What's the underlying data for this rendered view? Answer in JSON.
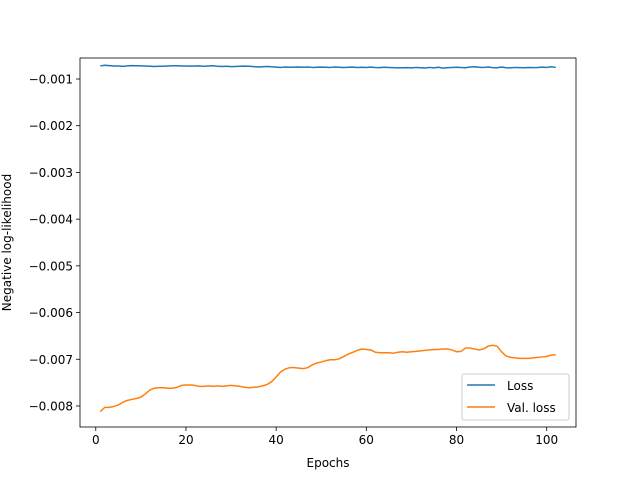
{
  "chart_data": {
    "type": "line",
    "title": "",
    "xlabel": "Epochs",
    "ylabel": "Negative log-likelihood",
    "xlim": [
      -3.5,
      106.5
    ],
    "ylim": [
      -0.00845,
      -0.00055
    ],
    "xticks": [
      0,
      20,
      40,
      60,
      80,
      100
    ],
    "xtick_labels": [
      "0",
      "20",
      "40",
      "60",
      "80",
      "100"
    ],
    "yticks": [
      -0.008,
      -0.007,
      -0.006,
      -0.005,
      -0.004,
      -0.003,
      -0.002,
      -0.001
    ],
    "ytick_labels": [
      "−0.008",
      "−0.007",
      "−0.006",
      "−0.005",
      "−0.004",
      "−0.003",
      "−0.002",
      "−0.001"
    ],
    "grid": false,
    "legend": "lower-right",
    "colors": [
      "#1f77b4",
      "#ff7f0e"
    ],
    "series": [
      {
        "name": "Loss",
        "x": [
          1,
          2,
          3,
          4,
          5,
          6,
          7,
          8,
          9,
          10,
          11,
          12,
          13,
          14,
          15,
          16,
          17,
          18,
          19,
          20,
          21,
          22,
          23,
          24,
          25,
          26,
          27,
          28,
          29,
          30,
          31,
          32,
          33,
          34,
          35,
          36,
          37,
          38,
          39,
          40,
          41,
          42,
          43,
          44,
          45,
          46,
          47,
          48,
          49,
          50,
          51,
          52,
          53,
          54,
          55,
          56,
          57,
          58,
          59,
          60,
          61,
          62,
          63,
          64,
          65,
          66,
          67,
          68,
          69,
          70,
          71,
          72,
          73,
          74,
          75,
          76,
          77,
          78,
          79,
          80,
          81,
          82,
          83,
          84,
          85,
          86,
          87,
          88,
          89,
          90,
          91,
          92,
          93,
          94,
          95,
          96,
          97,
          98,
          99,
          100,
          101,
          102
        ],
        "values": [
          -0.00072,
          -0.000705,
          -0.000712,
          -0.000722,
          -0.00072,
          -0.00073,
          -0.000718,
          -0.000712,
          -0.000715,
          -0.000718,
          -0.000722,
          -0.000728,
          -0.000732,
          -0.000728,
          -0.000728,
          -0.000722,
          -0.000715,
          -0.000715,
          -0.00072,
          -0.000722,
          -0.000725,
          -0.000722,
          -0.000718,
          -0.000728,
          -0.000722,
          -0.000715,
          -0.000728,
          -0.000732,
          -0.000728,
          -0.000735,
          -0.000732,
          -0.000728,
          -0.000725,
          -0.000728,
          -0.000735,
          -0.000742,
          -0.000738,
          -0.000732,
          -0.000738,
          -0.000745,
          -0.000752,
          -0.000742,
          -0.000748,
          -0.000745,
          -0.000742,
          -0.000748,
          -0.000742,
          -0.000752,
          -0.000748,
          -0.000745,
          -0.000748,
          -0.000752,
          -0.000742,
          -0.000748,
          -0.000752,
          -0.000748,
          -0.000745,
          -0.000752,
          -0.000748,
          -0.000752,
          -0.000745,
          -0.000752,
          -0.000755,
          -0.000748,
          -0.000752,
          -0.000755,
          -0.000762,
          -0.000758,
          -0.000755,
          -0.000762,
          -0.000752,
          -0.000758,
          -0.000765,
          -0.000752,
          -0.000762,
          -0.000748,
          -0.000768,
          -0.000755,
          -0.000752,
          -0.000748,
          -0.000752,
          -0.000758,
          -0.000742,
          -0.000738,
          -0.000748,
          -0.000752,
          -0.000742,
          -0.000755,
          -0.000758,
          -0.000742,
          -0.000758,
          -0.000762,
          -0.000752,
          -0.000755,
          -0.000758,
          -0.000752,
          -0.000755,
          -0.000752,
          -0.000745,
          -0.000752,
          -0.000738,
          -0.000752
        ]
      },
      {
        "name": "Val. loss",
        "x": [
          1,
          2,
          3,
          4,
          5,
          6,
          7,
          8,
          9,
          10,
          11,
          12,
          13,
          14,
          15,
          16,
          17,
          18,
          19,
          20,
          21,
          22,
          23,
          24,
          25,
          26,
          27,
          28,
          29,
          30,
          31,
          32,
          33,
          34,
          35,
          36,
          37,
          38,
          39,
          40,
          41,
          42,
          43,
          44,
          45,
          46,
          47,
          48,
          49,
          50,
          51,
          52,
          53,
          54,
          55,
          56,
          57,
          58,
          59,
          60,
          61,
          62,
          63,
          64,
          65,
          66,
          67,
          68,
          69,
          70,
          71,
          72,
          73,
          74,
          75,
          76,
          77,
          78,
          79,
          80,
          81,
          82,
          83,
          84,
          85,
          86,
          87,
          88,
          89,
          90,
          91,
          92,
          93,
          94,
          95,
          96,
          97,
          98,
          99,
          100,
          101,
          102
        ],
        "values": [
          -0.00812,
          -0.00803,
          -0.00803,
          -0.00801,
          -0.00798,
          -0.00792,
          -0.00788,
          -0.00786,
          -0.00784,
          -0.00781,
          -0.00774,
          -0.00766,
          -0.00762,
          -0.00761,
          -0.00761,
          -0.00762,
          -0.00762,
          -0.0076,
          -0.00756,
          -0.00755,
          -0.00755,
          -0.00756,
          -0.00758,
          -0.00758,
          -0.00757,
          -0.00758,
          -0.00757,
          -0.00758,
          -0.00757,
          -0.00756,
          -0.00757,
          -0.00758,
          -0.0076,
          -0.00761,
          -0.0076,
          -0.00759,
          -0.00757,
          -0.00754,
          -0.00748,
          -0.00738,
          -0.00727,
          -0.00721,
          -0.00718,
          -0.00718,
          -0.00719,
          -0.0072,
          -0.00718,
          -0.00712,
          -0.00708,
          -0.00706,
          -0.00703,
          -0.00701,
          -0.00701,
          -0.00699,
          -0.00694,
          -0.00689,
          -0.00685,
          -0.00681,
          -0.00678,
          -0.00679,
          -0.0068,
          -0.00685,
          -0.00686,
          -0.00686,
          -0.00686,
          -0.00687,
          -0.00685,
          -0.00684,
          -0.00685,
          -0.00684,
          -0.00683,
          -0.00682,
          -0.00681,
          -0.0068,
          -0.00679,
          -0.00679,
          -0.00678,
          -0.00678,
          -0.0068,
          -0.00684,
          -0.00683,
          -0.00676,
          -0.00676,
          -0.00678,
          -0.0068,
          -0.00678,
          -0.00672,
          -0.0067,
          -0.00672,
          -0.00684,
          -0.00693,
          -0.00696,
          -0.00697,
          -0.00698,
          -0.00698,
          -0.00698,
          -0.00697,
          -0.00696,
          -0.00695,
          -0.00694,
          -0.00691,
          -0.0069
        ]
      }
    ]
  }
}
